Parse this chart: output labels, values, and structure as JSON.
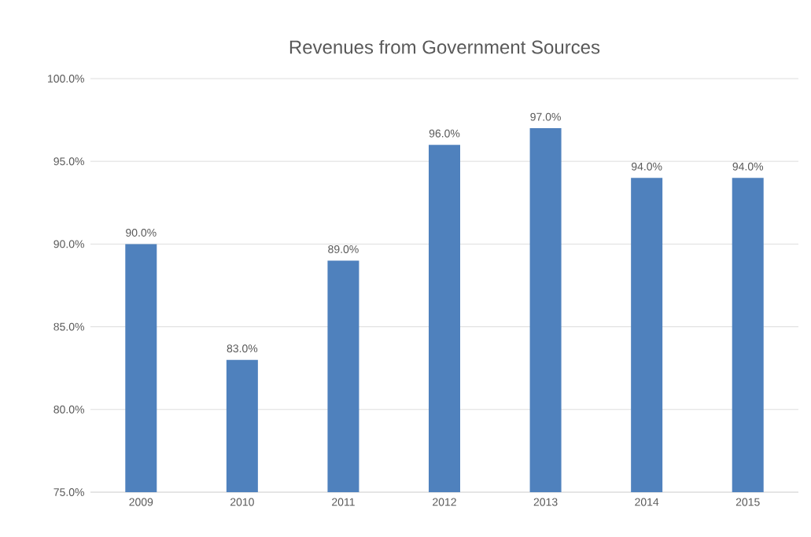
{
  "chart_data": {
    "type": "bar",
    "title": "Revenues from Government Sources",
    "categories": [
      "2009",
      "2010",
      "2011",
      "2012",
      "2013",
      "2014",
      "2015"
    ],
    "values": [
      90,
      83,
      89,
      96,
      97,
      94,
      94
    ],
    "value_labels": [
      "90.0%",
      "83.0%",
      "89.0%",
      "96.0%",
      "97.0%",
      "94.0%",
      "94.0%"
    ],
    "color": "#4f81bd",
    "ylim": [
      75,
      100
    ],
    "yticks": [
      {
        "value": 75,
        "label": "75.0%"
      },
      {
        "value": 80,
        "label": "80.0%"
      },
      {
        "value": 85,
        "label": "85.0%"
      },
      {
        "value": 90,
        "label": "90.0%"
      },
      {
        "value": 95,
        "label": "95.0%"
      },
      {
        "value": 100,
        "label": "100.0%"
      }
    ],
    "grid": "y"
  }
}
